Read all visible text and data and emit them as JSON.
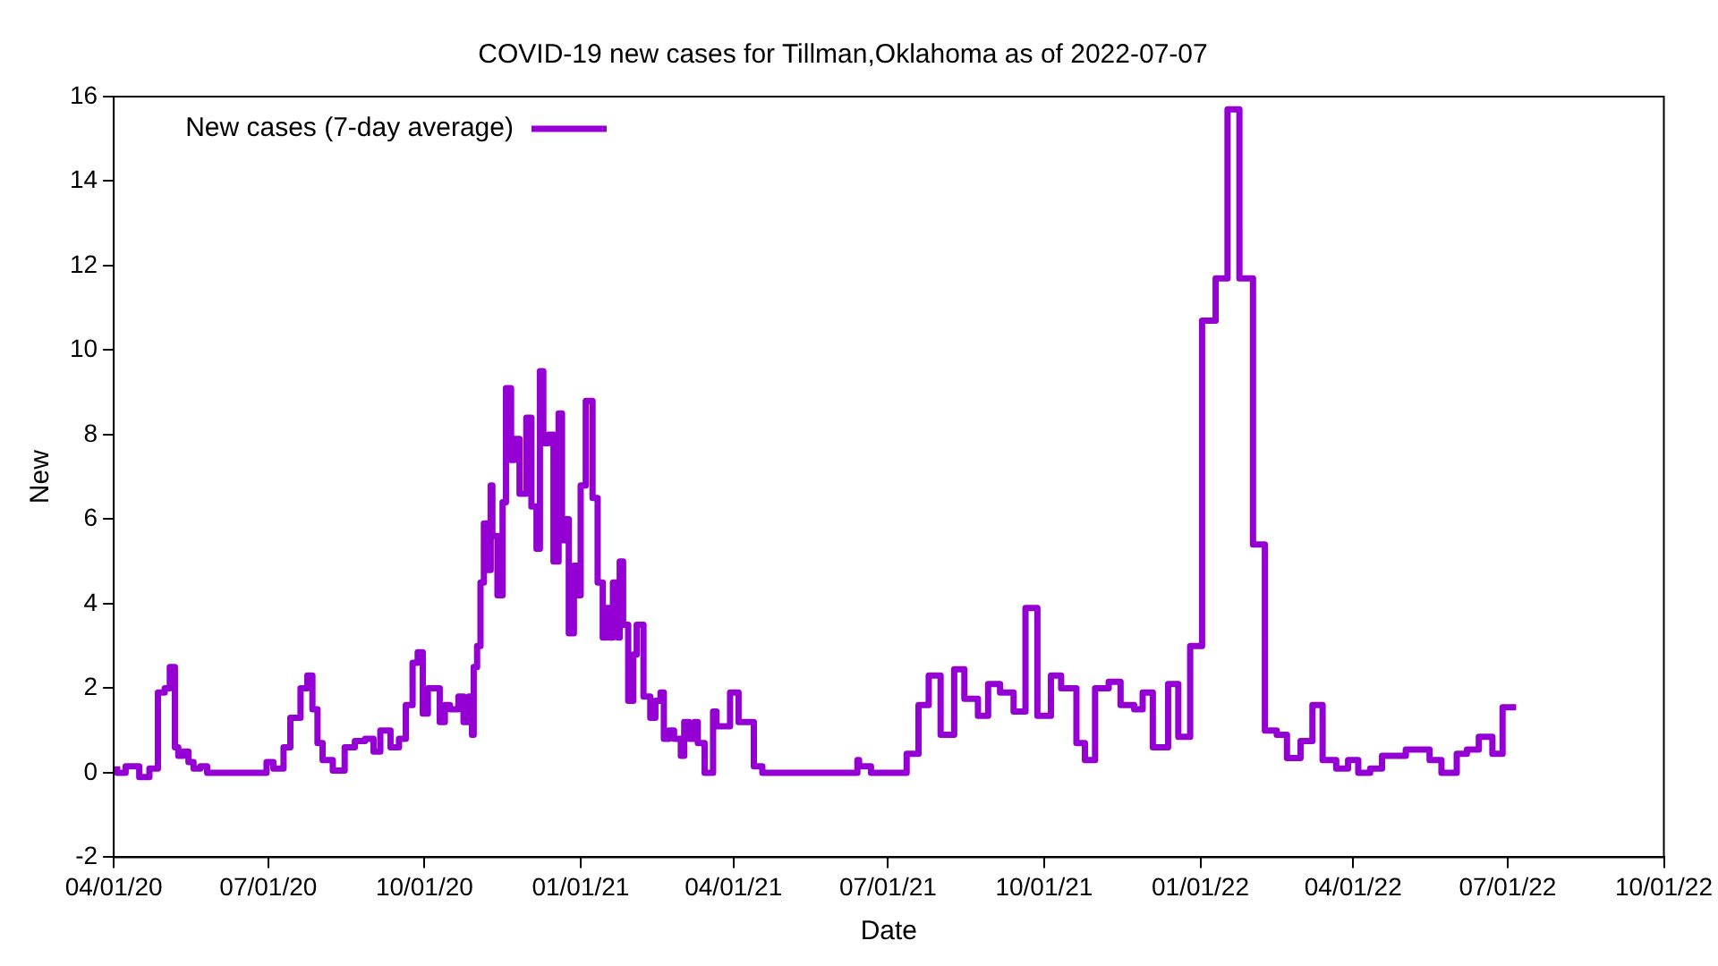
{
  "chart_data": {
    "type": "step",
    "title": "COVID-19 new cases for Tillman,Oklahoma as of 2022-07-07",
    "xlabel": "Date",
    "ylabel": "New",
    "xlim": [
      "2020-04-01",
      "2022-10-01"
    ],
    "xticks": [
      {
        "value": "2020-04-01",
        "label": "04/01/20"
      },
      {
        "value": "2020-07-01",
        "label": "07/01/20"
      },
      {
        "value": "2020-10-01",
        "label": "10/01/20"
      },
      {
        "value": "2021-01-01",
        "label": "01/01/21"
      },
      {
        "value": "2021-04-01",
        "label": "04/01/21"
      },
      {
        "value": "2021-07-01",
        "label": "07/01/21"
      },
      {
        "value": "2021-10-01",
        "label": "10/01/21"
      },
      {
        "value": "2022-01-01",
        "label": "01/01/22"
      },
      {
        "value": "2022-04-01",
        "label": "04/01/22"
      },
      {
        "value": "2022-07-01",
        "label": "07/01/22"
      },
      {
        "value": "2022-10-01",
        "label": "10/01/22"
      }
    ],
    "ylim": [
      -2,
      16
    ],
    "yticks": [
      -2,
      0,
      2,
      4,
      6,
      8,
      10,
      12,
      14,
      16
    ],
    "grid": false,
    "legend": "top left",
    "x": [
      "2020-04-03",
      "2020-04-08",
      "2020-04-16",
      "2020-04-22",
      "2020-04-27",
      "2020-05-01",
      "2020-05-04",
      "2020-05-07",
      "2020-05-09",
      "2020-05-12",
      "2020-05-15",
      "2020-05-18",
      "2020-05-22",
      "2020-05-26",
      "2020-05-30",
      "2020-06-30",
      "2020-07-04",
      "2020-07-10",
      "2020-07-14",
      "2020-07-20",
      "2020-07-24",
      "2020-07-27",
      "2020-07-30",
      "2020-08-02",
      "2020-08-08",
      "2020-08-15",
      "2020-08-21",
      "2020-08-27",
      "2020-09-01",
      "2020-09-05",
      "2020-09-11",
      "2020-09-16",
      "2020-09-20",
      "2020-09-24",
      "2020-09-27",
      "2020-09-30",
      "2020-10-03",
      "2020-10-06",
      "2020-10-10",
      "2020-10-13",
      "2020-10-16",
      "2020-10-21",
      "2020-10-24",
      "2020-10-27",
      "2020-10-29",
      "2020-10-30",
      "2020-11-01",
      "2020-11-03",
      "2020-11-05",
      "2020-11-07",
      "2020-11-09",
      "2020-11-10",
      "2020-11-13",
      "2020-11-16",
      "2020-11-18",
      "2020-11-21",
      "2020-11-23",
      "2020-11-26",
      "2020-11-30",
      "2020-12-03",
      "2020-12-06",
      "2020-12-08",
      "2020-12-10",
      "2020-12-13",
      "2020-12-16",
      "2020-12-19",
      "2020-12-21",
      "2020-12-23",
      "2020-12-25",
      "2020-12-28",
      "2020-12-30",
      "2021-01-01",
      "2021-01-04",
      "2021-01-08",
      "2021-01-11",
      "2021-01-14",
      "2021-01-16",
      "2021-01-18",
      "2021-01-20",
      "2021-01-23",
      "2021-01-24",
      "2021-01-26",
      "2021-01-29",
      "2021-02-01",
      "2021-02-03",
      "2021-02-07",
      "2021-02-11",
      "2021-02-14",
      "2021-02-17",
      "2021-02-19",
      "2021-02-22",
      "2021-02-25",
      "2021-03-01",
      "2021-03-03",
      "2021-03-06",
      "2021-03-09",
      "2021-03-11",
      "2021-03-15",
      "2021-03-20",
      "2021-03-22",
      "2021-03-30",
      "2021-04-04",
      "2021-04-13",
      "2021-04-18",
      "2021-05-03",
      "2021-06-13",
      "2021-06-14",
      "2021-06-21",
      "2021-07-12",
      "2021-07-19",
      "2021-07-25",
      "2021-08-01",
      "2021-08-09",
      "2021-08-15",
      "2021-08-23",
      "2021-08-29",
      "2021-09-05",
      "2021-09-13",
      "2021-09-20",
      "2021-09-27",
      "2021-10-05",
      "2021-10-11",
      "2021-10-20",
      "2021-10-25",
      "2021-10-31",
      "2021-11-08",
      "2021-11-15",
      "2021-11-23",
      "2021-11-28",
      "2021-12-04",
      "2021-12-13",
      "2021-12-19",
      "2021-12-26",
      "2022-01-02",
      "2022-01-10",
      "2022-01-17",
      "2022-01-24",
      "2022-02-01",
      "2022-02-08",
      "2022-02-15",
      "2022-02-21",
      "2022-03-01",
      "2022-03-08",
      "2022-03-14",
      "2022-03-22",
      "2022-03-29",
      "2022-04-04",
      "2022-04-11",
      "2022-04-18",
      "2022-05-02",
      "2022-05-16",
      "2022-05-23",
      "2022-06-01",
      "2022-06-07",
      "2022-06-14",
      "2022-06-22",
      "2022-06-28",
      "2022-07-05",
      "2022-07-06"
    ],
    "series": [
      {
        "name": "New cases (7-day average)",
        "color": "#9400d3",
        "values": [
          0.15,
          0.0,
          0.15,
          -0.1,
          0.1,
          1.9,
          2.0,
          2.5,
          0.6,
          0.4,
          0.5,
          0.25,
          0.1,
          0.15,
          0.0,
          0.0,
          0.25,
          0.1,
          0.6,
          1.3,
          2.0,
          2.3,
          1.5,
          0.7,
          0.3,
          0.05,
          0.6,
          0.75,
          0.8,
          0.5,
          1.0,
          0.6,
          0.8,
          1.6,
          2.6,
          2.85,
          1.4,
          2.0,
          2.0,
          1.2,
          1.6,
          1.5,
          1.8,
          1.2,
          1.8,
          0.9,
          2.5,
          3.0,
          4.5,
          5.9,
          4.8,
          6.8,
          5.6,
          4.2,
          6.4,
          9.1,
          7.4,
          7.9,
          6.6,
          8.4,
          6.3,
          5.3,
          9.5,
          7.8,
          8.0,
          5.0,
          8.5,
          5.5,
          6.0,
          3.3,
          4.9,
          4.2,
          6.8,
          8.8,
          6.5,
          4.5,
          3.2,
          3.9,
          3.2,
          4.5,
          3.2,
          5.0,
          3.5,
          1.7,
          2.8,
          3.5,
          1.8,
          1.3,
          1.7,
          1.9,
          0.8,
          1.0,
          0.8,
          0.4,
          1.2,
          0.8,
          1.2,
          0.7,
          0.0,
          1.45,
          1.1,
          1.9,
          1.2,
          0.15,
          0.0,
          0.0,
          0.3,
          0.15,
          0.0,
          0.45,
          1.6,
          2.3,
          0.9,
          2.45,
          1.75,
          1.35,
          2.1,
          1.9,
          1.45,
          3.9,
          1.35,
          2.3,
          2.0,
          0.7,
          0.3,
          2.0,
          2.15,
          1.6,
          1.5,
          1.9,
          0.6,
          2.1,
          0.85,
          3.0,
          10.7,
          11.7,
          15.7,
          11.7,
          5.4,
          1.0,
          0.9,
          0.35,
          0.75,
          1.6,
          0.3,
          0.1,
          0.3,
          0.0,
          0.1,
          0.4,
          0.55,
          0.3,
          0.0,
          0.45,
          0.55,
          0.85,
          0.45,
          1.55,
          1.55
        ]
      }
    ]
  }
}
